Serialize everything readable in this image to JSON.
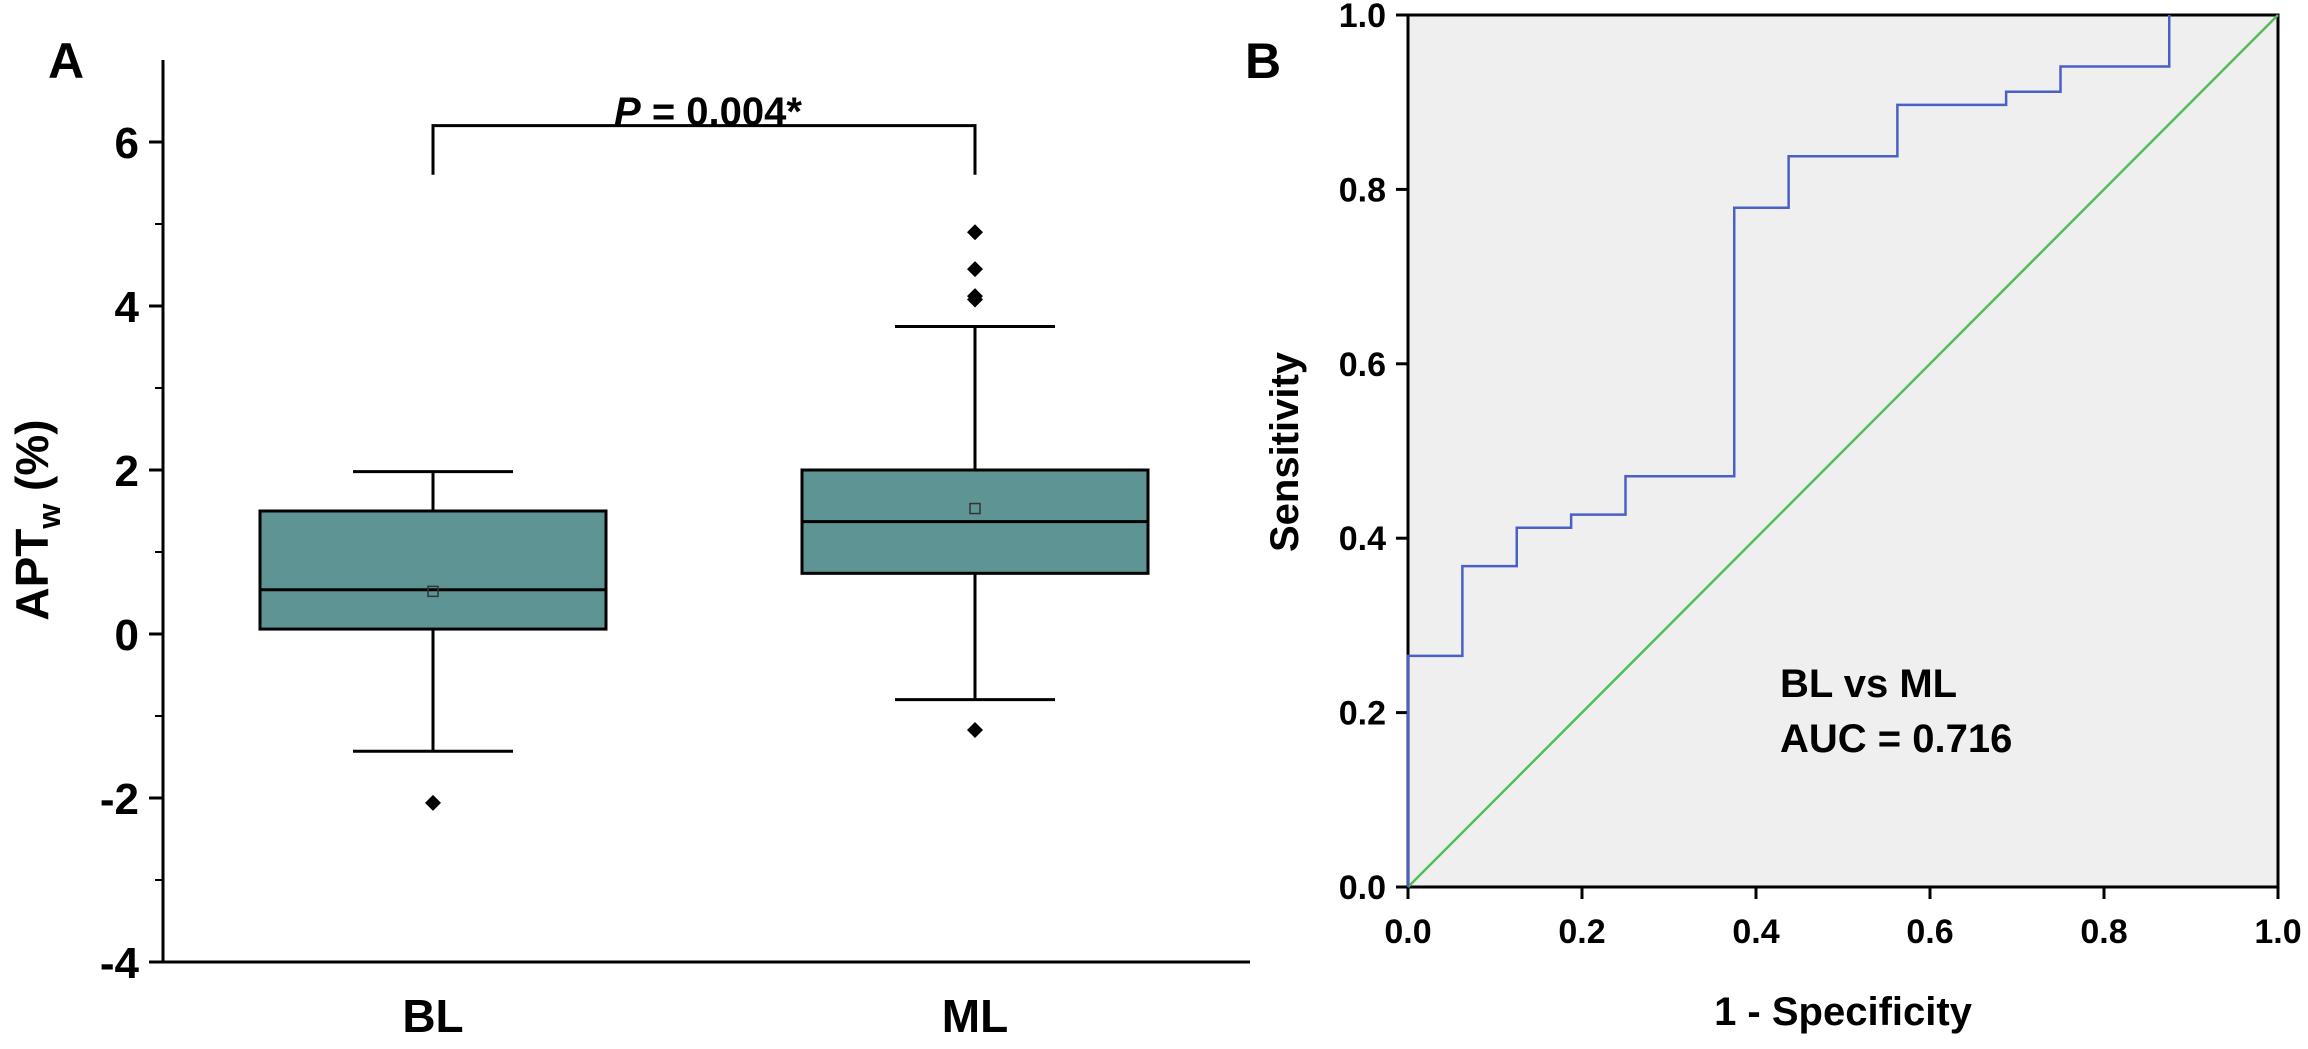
{
  "colors": {
    "box_fill": "#5f9494",
    "roc_line": "#4a60c8",
    "reference_line": "#4fbf5a",
    "plot_bg": "#efefef",
    "ink": "#000000"
  },
  "chart_data": [
    {
      "type": "box",
      "panel_label": "A",
      "title": "",
      "xlabel": "",
      "ylabel_main": "APT",
      "ylabel_sub": "w",
      "ylabel_suffix": " (%)",
      "ylim": [
        -4,
        7
      ],
      "yticks": [
        -4,
        -2,
        0,
        2,
        4,
        6
      ],
      "ytick_labels": [
        "-4",
        "-2",
        "0",
        "2",
        "4",
        "6"
      ],
      "categories": [
        "BL",
        "ML"
      ],
      "boxes": [
        {
          "label": "BL",
          "whisker_low": -1.43,
          "q1": 0.06,
          "median": 0.54,
          "q3": 1.5,
          "whisker_high": 1.98,
          "mean": 0.52,
          "outliers": [
            -2.06
          ]
        },
        {
          "label": "ML",
          "whisker_low": -0.8,
          "q1": 0.74,
          "median": 1.37,
          "q3": 2.0,
          "whisker_high": 3.75,
          "mean": 1.53,
          "outliers": [
            -1.17,
            4.08,
            4.12,
            4.45,
            4.9
          ]
        }
      ],
      "significance": {
        "p_prefix": "P",
        "p_rest": " = 0.004*",
        "from": "BL",
        "to": "ML",
        "y_bar": 6.2,
        "y_tick_end": 5.6
      }
    },
    {
      "type": "line",
      "panel_label": "B",
      "title": "",
      "xlabel": "1 - Specificity",
      "ylabel": "Sensitivity",
      "xlim": [
        0,
        1
      ],
      "ylim": [
        0,
        1
      ],
      "xticks": [
        0.0,
        0.2,
        0.4,
        0.6,
        0.8,
        1.0
      ],
      "yticks": [
        0.0,
        0.2,
        0.4,
        0.6,
        0.8,
        1.0
      ],
      "xtick_labels": [
        "0.0",
        "0.2",
        "0.4",
        "0.6",
        "0.8",
        "1.0"
      ],
      "ytick_labels": [
        "0.0",
        "0.2",
        "0.4",
        "0.6",
        "0.8",
        "1.0"
      ],
      "series": [
        {
          "name": "BL vs ML ROC",
          "x": [
            0.0,
            0.0,
            0.0625,
            0.0625,
            0.125,
            0.125,
            0.1875,
            0.1875,
            0.25,
            0.25,
            0.375,
            0.375,
            0.4375,
            0.4375,
            0.5625,
            0.5625,
            0.6875,
            0.6875,
            0.75,
            0.75,
            0.875,
            0.875
          ],
          "y": [
            0.0,
            0.265,
            0.265,
            0.368,
            0.368,
            0.412,
            0.412,
            0.427,
            0.427,
            0.471,
            0.471,
            0.779,
            0.779,
            0.838,
            0.838,
            0.897,
            0.897,
            0.912,
            0.912,
            0.941,
            0.941,
            1.0
          ]
        },
        {
          "name": "Reference line",
          "x": [
            0,
            1
          ],
          "y": [
            0,
            1
          ]
        }
      ],
      "annotation_line1": "BL vs ML",
      "annotation_line2": "AUC = 0.716"
    }
  ]
}
